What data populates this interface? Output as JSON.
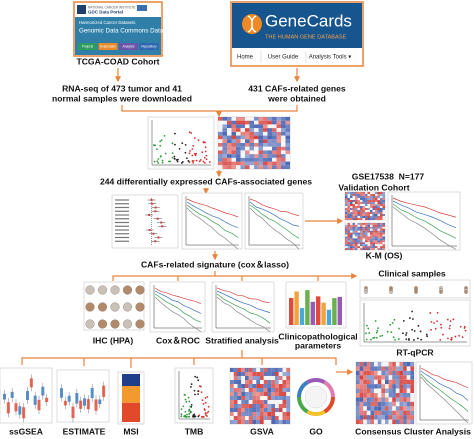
{
  "gdc": {
    "institute": "NATIONAL CANCER INSTITUTE",
    "portal": "GDC Data Portal",
    "heading": "Harmonized Cancer Datasets",
    "title": "Genomic Data Commons Data Portal",
    "tabs": [
      "Projects",
      "Exploration",
      "Analysis",
      "Repository"
    ],
    "cohort": "TCGA-COAD Cohort"
  },
  "genecards": {
    "logo": "GeneCards",
    "tagline": "THE HUMAN GENE DATABASE",
    "nav": [
      "Home",
      "User Guide",
      "Analysis Tools ▾"
    ]
  },
  "steps": {
    "download": [
      "RNA-seq of 473 tumor and 41",
      "normal samples were downloaded"
    ],
    "genes": [
      "431 CAFs-related genes",
      "were obtained"
    ],
    "deg": "244 differentially expressed CAFs-associated genes",
    "signature": "CAFs-related signature (cox＆lasso)"
  },
  "validation": {
    "dataset": "GSE17538  N=177",
    "cohort": "Validation Cohort",
    "analysis": "K-M (OS)"
  },
  "analyses": {
    "ihc": "IHC (HPA)",
    "cox": "Cox＆ROC",
    "stratified": "Stratified analysis",
    "clinico": [
      "Clinicopathological",
      "parameters"
    ],
    "clinical": "Clinical samples",
    "qpcr": "RT-qPCR"
  },
  "immune": [
    "ssGSEA",
    "ESTIMATE",
    "MSI",
    "TMB",
    "GSVA",
    "GO"
  ],
  "cluster": "Consensus Cluster Analysis"
}
